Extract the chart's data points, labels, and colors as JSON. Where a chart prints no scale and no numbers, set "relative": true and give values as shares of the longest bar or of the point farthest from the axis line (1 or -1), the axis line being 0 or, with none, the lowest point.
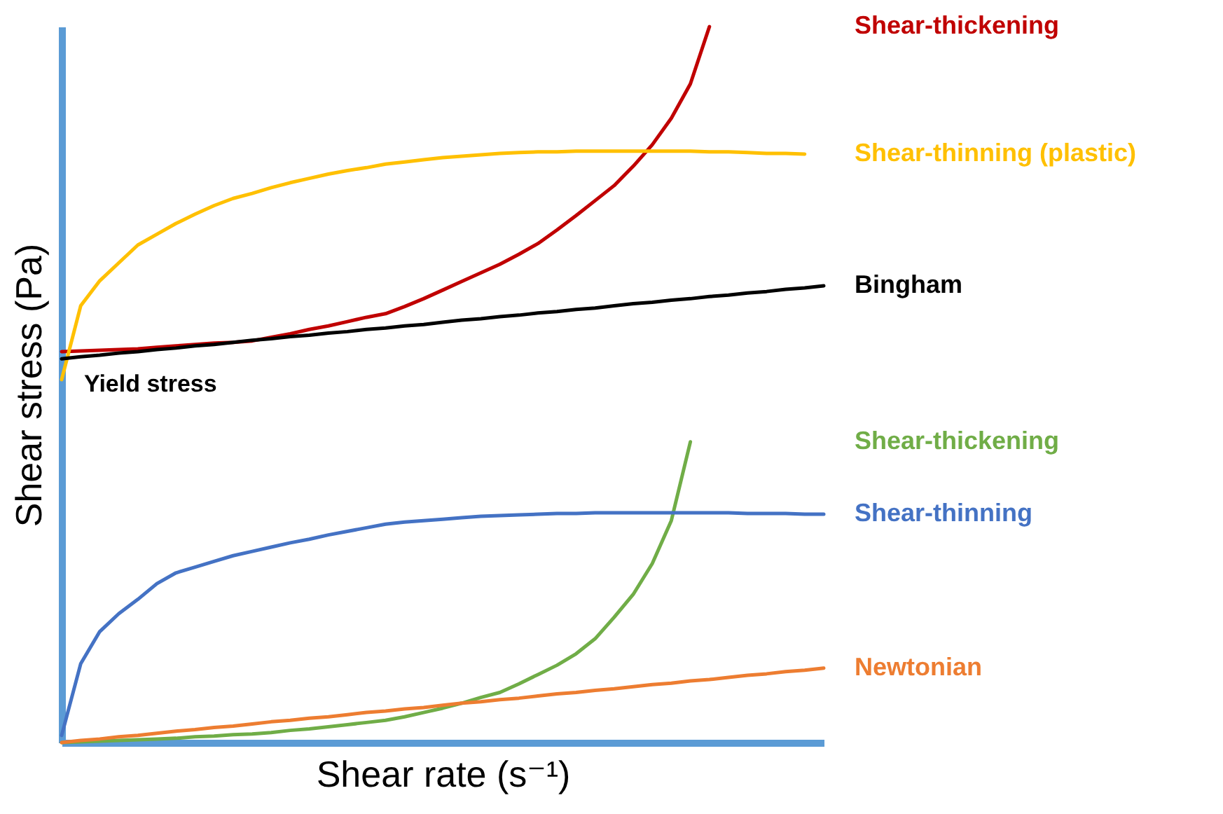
{
  "chart_data": {
    "type": "line",
    "relative": true,
    "xlabel": "Shear rate (s⁻¹)",
    "ylabel": "Shear stress (Pa)",
    "categories": [
      null,
      null,
      null,
      null,
      null,
      null,
      null,
      null,
      null,
      null,
      null,
      null,
      null,
      null,
      null,
      null,
      null,
      null,
      null,
      null,
      null,
      null,
      null,
      null,
      null,
      null,
      null,
      null,
      null,
      null,
      null,
      null,
      null,
      null,
      null,
      null,
      null,
      null,
      null,
      null,
      null
    ],
    "series": [
      {
        "name": "Shear-thickening",
        "color": "#c00000",
        "values": [
          0.546,
          0.547,
          0.548,
          0.549,
          0.55,
          0.552,
          0.554,
          0.556,
          0.558,
          0.559,
          0.561,
          0.566,
          0.571,
          0.577,
          0.582,
          0.588,
          0.594,
          0.599,
          0.609,
          0.62,
          0.632,
          0.644,
          0.656,
          0.668,
          0.682,
          0.697,
          0.716,
          0.736,
          0.757,
          0.778,
          0.805,
          0.835,
          0.872,
          0.92,
          1.0,
          null,
          null,
          null,
          null,
          null,
          null
        ]
      },
      {
        "name": "Shear-thinning (plastic)",
        "color": "#ffc000",
        "values": [
          0.507,
          0.61,
          0.645,
          0.67,
          0.695,
          0.71,
          0.725,
          0.738,
          0.75,
          0.76,
          0.767,
          0.775,
          0.782,
          0.788,
          0.794,
          0.799,
          0.803,
          0.808,
          0.811,
          0.814,
          0.817,
          0.819,
          0.821,
          0.823,
          0.824,
          0.825,
          0.825,
          0.826,
          0.826,
          0.826,
          0.826,
          0.826,
          0.826,
          0.826,
          0.825,
          0.825,
          0.824,
          0.823,
          0.823,
          0.822,
          null
        ]
      },
      {
        "name": "Bingham",
        "color": "#000000",
        "values": [
          0.536,
          0.539,
          0.541,
          0.544,
          0.546,
          0.549,
          0.551,
          0.554,
          0.556,
          0.559,
          0.562,
          0.564,
          0.567,
          0.569,
          0.572,
          0.574,
          0.577,
          0.579,
          0.582,
          0.584,
          0.587,
          0.59,
          0.592,
          0.595,
          0.597,
          0.6,
          0.602,
          0.605,
          0.607,
          0.61,
          0.613,
          0.615,
          0.618,
          0.62,
          0.623,
          0.625,
          0.628,
          0.63,
          0.633,
          0.635,
          0.638
        ]
      },
      {
        "name": "Shear-thickening",
        "color": "#70ad47",
        "values": [
          0,
          0.001,
          0.002,
          0.003,
          0.004,
          0.005,
          0.006,
          0.008,
          0.009,
          0.011,
          0.012,
          0.014,
          0.017,
          0.019,
          0.022,
          0.025,
          0.028,
          0.031,
          0.036,
          0.042,
          0.048,
          0.055,
          0.063,
          0.07,
          0.082,
          0.095,
          0.108,
          0.124,
          0.145,
          0.175,
          0.207,
          0.25,
          0.31,
          0.42,
          null,
          null,
          null,
          null,
          null,
          null,
          null
        ]
      },
      {
        "name": "Shear-thinning",
        "color": "#4472c4",
        "values": [
          0.01,
          0.11,
          0.155,
          0.18,
          0.2,
          0.222,
          0.237,
          0.245,
          0.253,
          0.261,
          0.267,
          0.273,
          0.279,
          0.284,
          0.29,
          0.295,
          0.3,
          0.305,
          0.308,
          0.31,
          0.312,
          0.314,
          0.316,
          0.317,
          0.318,
          0.319,
          0.32,
          0.32,
          0.321,
          0.321,
          0.321,
          0.321,
          0.321,
          0.321,
          0.321,
          0.321,
          0.32,
          0.32,
          0.32,
          0.319,
          0.319
        ]
      },
      {
        "name": "Newtonian",
        "color": "#ed7d31",
        "values": [
          0,
          0.003,
          0.005,
          0.008,
          0.01,
          0.013,
          0.016,
          0.018,
          0.021,
          0.023,
          0.026,
          0.029,
          0.031,
          0.034,
          0.036,
          0.039,
          0.042,
          0.044,
          0.047,
          0.049,
          0.052,
          0.055,
          0.057,
          0.06,
          0.062,
          0.065,
          0.068,
          0.07,
          0.073,
          0.075,
          0.078,
          0.081,
          0.083,
          0.086,
          0.088,
          0.091,
          0.094,
          0.096,
          0.099,
          0.101,
          0.104
        ]
      }
    ],
    "annotations": [
      "Yield stress"
    ]
  }
}
